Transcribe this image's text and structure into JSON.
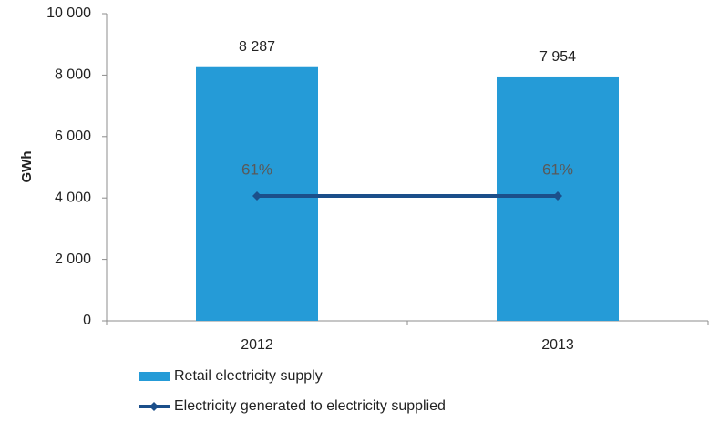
{
  "chart_data": {
    "type": "bar",
    "y_label": "GWh",
    "categories": [
      "2012",
      "2013"
    ],
    "series": [
      {
        "name": "Retail electricity supply",
        "type": "bar",
        "color": "#259bd7",
        "values": [
          8287,
          7954
        ],
        "value_labels": [
          "8 287",
          "7 954"
        ]
      },
      {
        "name": "Electricity generated to electricity supplied",
        "type": "line",
        "axis": "y2",
        "color": "#1b4f8a",
        "values": [
          61,
          61
        ],
        "value_labels": [
          "61%",
          "61%"
        ]
      }
    ],
    "ylim": [
      0,
      10000
    ],
    "yticks": [
      0,
      {
        "value": 2000,
        "label": "2 000"
      },
      {
        "value": 4000,
        "label": "4 000"
      },
      {
        "value": 6000,
        "label": "6 000"
      },
      {
        "value": 8000,
        "label": "8 000"
      },
      {
        "value": 10000,
        "label": "10 000"
      }
    ],
    "y2lim": [
      0,
      150
    ],
    "grid": false,
    "legend": "bottom"
  }
}
